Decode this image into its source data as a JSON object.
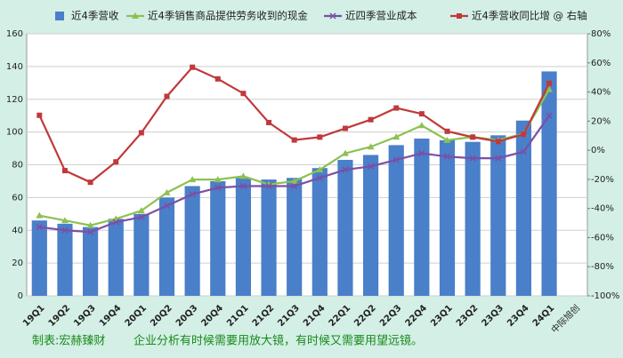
{
  "chart_data": {
    "type": "bar",
    "categories": [
      "19Q1",
      "19Q2",
      "19Q3",
      "19Q4",
      "20Q1",
      "20Q2",
      "20Q3",
      "20Q4",
      "21Q1",
      "21Q2",
      "21Q3",
      "21Q4",
      "22Q1",
      "22Q2",
      "22Q3",
      "22Q4",
      "23Q1",
      "23Q2",
      "23Q3",
      "23Q4",
      "24Q1"
    ],
    "series": [
      {
        "name": "近4季营收",
        "type": "bar",
        "color": "#4a7fc9",
        "values": [
          46,
          44,
          42,
          47,
          50,
          60,
          67,
          70,
          72,
          71,
          72,
          78,
          83,
          86,
          92,
          96,
          95,
          94,
          98,
          107,
          137
        ]
      },
      {
        "name": "近4季销售商品提供劳务收到的现金",
        "type": "line",
        "marker": "triangle",
        "color": "#8cc152",
        "values": [
          49,
          46,
          43,
          47,
          52,
          63,
          71,
          71,
          73,
          68,
          70,
          77,
          87,
          91,
          97,
          104,
          95,
          97,
          95,
          99,
          126
        ]
      },
      {
        "name": "近四季营业成本",
        "type": "line",
        "marker": "x",
        "color": "#7b4fa6",
        "values": [
          42,
          40,
          39,
          45,
          48,
          55,
          62,
          66,
          67,
          67,
          67,
          72,
          77,
          79,
          83,
          87,
          85,
          84,
          84,
          88,
          110
        ]
      },
      {
        "name": "近4季营收同比增 @ 右轴",
        "type": "line",
        "marker": "square",
        "axis": "y2",
        "color": "#c0393b",
        "values": [
          24,
          -14,
          -22,
          -8,
          12,
          37,
          57,
          49,
          39,
          19,
          7,
          9,
          15,
          21,
          29,
          25,
          13,
          9,
          6,
          11,
          46
        ]
      }
    ],
    "ylim": [
      0,
      160
    ],
    "yticks": [
      0,
      20,
      40,
      60,
      80,
      100,
      120,
      140,
      160
    ],
    "y2lim": [
      -100,
      80
    ],
    "y2ticks": [
      {
        "value": -100,
        "label": "-100%"
      },
      {
        "value": -80,
        "label": "-80%"
      },
      {
        "value": -60,
        "label": "-60%"
      },
      {
        "value": -40,
        "label": "-40%"
      },
      {
        "value": -20,
        "label": "-20%"
      },
      {
        "value": 0,
        "label": "0%"
      },
      {
        "value": 20,
        "label": "20%"
      },
      {
        "value": 40,
        "label": "40%"
      },
      {
        "value": 60,
        "label": "60%"
      },
      {
        "value": 80,
        "label": "80%"
      }
    ],
    "grid": true,
    "annotations": [
      "中际旭创",
      "制表:宏赫臻财",
      "企业分析有时候需要用放大镜，有时候又需要用望远镜。"
    ]
  }
}
